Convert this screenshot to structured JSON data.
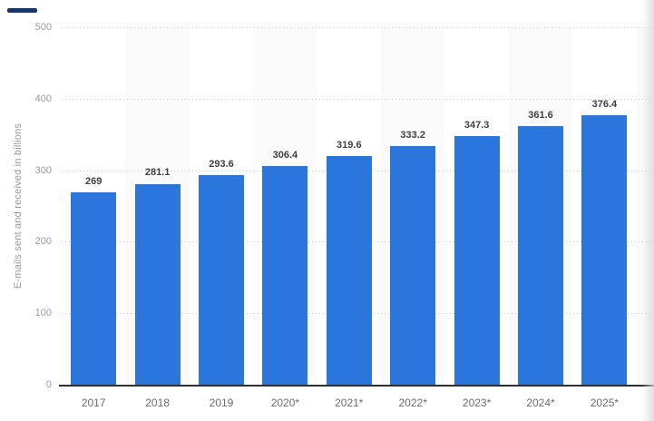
{
  "chart_data": {
    "type": "bar",
    "title": "",
    "xlabel": "",
    "ylabel": "E-mails sent and received in billions",
    "categories": [
      "2017",
      "2018",
      "2019",
      "2020*",
      "2021*",
      "2022*",
      "2023*",
      "2024*",
      "2025*"
    ],
    "values": [
      269,
      281.1,
      293.6,
      306.4,
      319.6,
      333.2,
      347.3,
      361.6,
      376.4
    ],
    "value_labels": [
      "269",
      "281.1",
      "293.6",
      "306.4",
      "319.6",
      "333.2",
      "347.3",
      "361.6",
      "376.4"
    ],
    "ylim": [
      0,
      500
    ],
    "yticks": [
      0,
      100,
      200,
      300,
      400,
      500
    ],
    "grid": "horizontal-dotted",
    "legend_position": "none",
    "striped_column_indexes": [
      1,
      3,
      5,
      7,
      9
    ],
    "colors": {
      "bar": "#2a76dc",
      "column_stripe": "#fafafa",
      "gridline": "#c8c8c8",
      "axis_line": "#2f2f2f",
      "value_label": "#404040",
      "tick_label": "#999999",
      "x_label": "#6b6b6b",
      "corner_fragment": "#17366d"
    }
  }
}
